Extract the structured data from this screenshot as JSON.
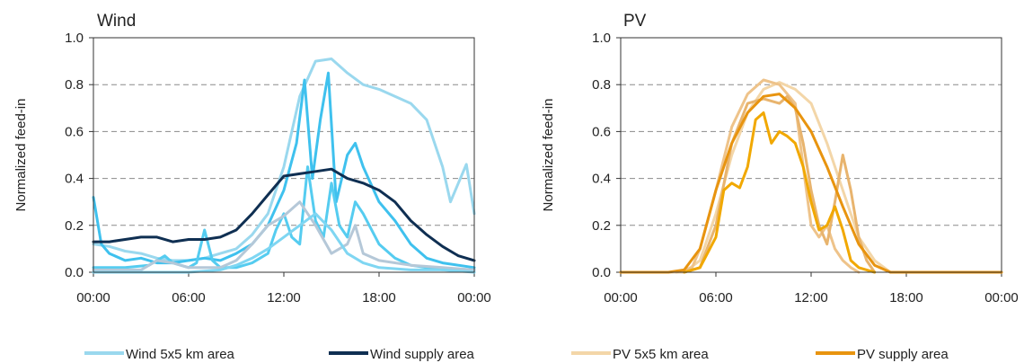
{
  "chart_data": [
    {
      "type": "line",
      "title": "Wind",
      "xlabel": "",
      "ylabel": "Normalized feed-in",
      "ylim": [
        0,
        1
      ],
      "y_ticks": [
        "0.0",
        "0.2",
        "0.4",
        "0.6",
        "0.8",
        "1.0"
      ],
      "x_ticks": [
        "00:00",
        "06:00",
        "12:00",
        "18:00",
        "00:00"
      ],
      "grid": "horizontal dashed",
      "series": [
        {
          "legend": "Wind 5x5 km area",
          "color": "#9ad8ee",
          "points": [
            [
              0,
              0.12
            ],
            [
              1,
              0.11
            ],
            [
              2,
              0.09
            ],
            [
              3,
              0.08
            ],
            [
              4,
              0.06
            ],
            [
              5,
              0.05
            ],
            [
              6,
              0.05
            ],
            [
              7,
              0.06
            ],
            [
              8,
              0.08
            ],
            [
              9,
              0.1
            ],
            [
              10,
              0.16
            ],
            [
              11,
              0.25
            ],
            [
              12,
              0.45
            ],
            [
              13,
              0.75
            ],
            [
              14,
              0.9
            ],
            [
              15,
              0.91
            ],
            [
              16,
              0.85
            ],
            [
              17,
              0.8
            ],
            [
              18,
              0.78
            ],
            [
              19,
              0.75
            ],
            [
              20,
              0.72
            ],
            [
              21,
              0.65
            ],
            [
              22,
              0.45
            ],
            [
              22.5,
              0.3
            ],
            [
              23,
              0.38
            ],
            [
              23.5,
              0.46
            ],
            [
              24,
              0.25
            ]
          ]
        },
        {
          "legend": "",
          "color": "#3fc1ee",
          "points": [
            [
              0,
              0.32
            ],
            [
              0.5,
              0.12
            ],
            [
              1,
              0.08
            ],
            [
              2,
              0.05
            ],
            [
              3,
              0.06
            ],
            [
              4,
              0.04
            ],
            [
              5,
              0.04
            ],
            [
              6,
              0.05
            ],
            [
              7,
              0.06
            ],
            [
              8,
              0.05
            ],
            [
              9,
              0.08
            ],
            [
              10,
              0.12
            ],
            [
              11,
              0.2
            ],
            [
              12,
              0.35
            ],
            [
              12.8,
              0.55
            ],
            [
              13.3,
              0.82
            ],
            [
              13.8,
              0.4
            ],
            [
              14.3,
              0.65
            ],
            [
              14.8,
              0.85
            ],
            [
              15.3,
              0.3
            ],
            [
              16,
              0.5
            ],
            [
              16.5,
              0.55
            ],
            [
              17,
              0.45
            ],
            [
              18,
              0.3
            ],
            [
              19,
              0.22
            ],
            [
              20,
              0.12
            ],
            [
              21,
              0.06
            ],
            [
              22,
              0.04
            ],
            [
              23,
              0.03
            ],
            [
              24,
              0.02
            ]
          ]
        },
        {
          "legend": "",
          "color": "#55ccf0",
          "points": [
            [
              0,
              0.02
            ],
            [
              2,
              0.02
            ],
            [
              3.5,
              0.03
            ],
            [
              4.5,
              0.07
            ],
            [
              5,
              0.04
            ],
            [
              6,
              0.02
            ],
            [
              6.5,
              0.04
            ],
            [
              7,
              0.18
            ],
            [
              7.5,
              0.05
            ],
            [
              8,
              0.02
            ],
            [
              9,
              0.02
            ],
            [
              10,
              0.04
            ],
            [
              11,
              0.08
            ],
            [
              11.5,
              0.18
            ],
            [
              12,
              0.25
            ],
            [
              12.5,
              0.15
            ],
            [
              13,
              0.12
            ],
            [
              13.5,
              0.45
            ],
            [
              14,
              0.22
            ],
            [
              14.5,
              0.15
            ],
            [
              15,
              0.38
            ],
            [
              15.5,
              0.2
            ],
            [
              16,
              0.15
            ],
            [
              16.5,
              0.3
            ],
            [
              17,
              0.25
            ],
            [
              18,
              0.12
            ],
            [
              19,
              0.06
            ],
            [
              20,
              0.03
            ],
            [
              21,
              0.02
            ],
            [
              22,
              0.01
            ],
            [
              24,
              0.01
            ]
          ]
        },
        {
          "legend": "",
          "color": "#b5c8d8",
          "points": [
            [
              0,
              0.01
            ],
            [
              3,
              0.01
            ],
            [
              4,
              0.05
            ],
            [
              5,
              0.04
            ],
            [
              6,
              0.02
            ],
            [
              8,
              0.02
            ],
            [
              9,
              0.05
            ],
            [
              10,
              0.12
            ],
            [
              11,
              0.2
            ],
            [
              12,
              0.24
            ],
            [
              13,
              0.3
            ],
            [
              14,
              0.2
            ],
            [
              15,
              0.08
            ],
            [
              16,
              0.12
            ],
            [
              16.5,
              0.2
            ],
            [
              17,
              0.08
            ],
            [
              18,
              0.05
            ],
            [
              20,
              0.03
            ],
            [
              22,
              0.02
            ],
            [
              24,
              0.01
            ]
          ]
        },
        {
          "legend": "",
          "color": "#7fd6f2",
          "points": [
            [
              0,
              0.0
            ],
            [
              6,
              0.0
            ],
            [
              8,
              0.01
            ],
            [
              9,
              0.03
            ],
            [
              10,
              0.06
            ],
            [
              11,
              0.1
            ],
            [
              12,
              0.15
            ],
            [
              13,
              0.2
            ],
            [
              14,
              0.25
            ],
            [
              15,
              0.18
            ],
            [
              16,
              0.08
            ],
            [
              17,
              0.04
            ],
            [
              18,
              0.02
            ],
            [
              20,
              0.01
            ],
            [
              22,
              0.01
            ],
            [
              24,
              0.0
            ]
          ]
        },
        {
          "legend": "Wind supply area",
          "color": "#0f2f52",
          "points": [
            [
              0,
              0.13
            ],
            [
              1,
              0.13
            ],
            [
              2,
              0.14
            ],
            [
              3,
              0.15
            ],
            [
              4,
              0.15
            ],
            [
              5,
              0.13
            ],
            [
              6,
              0.14
            ],
            [
              7,
              0.14
            ],
            [
              8,
              0.15
            ],
            [
              9,
              0.18
            ],
            [
              10,
              0.25
            ],
            [
              11,
              0.33
            ],
            [
              12,
              0.41
            ],
            [
              13,
              0.42
            ],
            [
              14,
              0.43
            ],
            [
              15,
              0.44
            ],
            [
              16,
              0.4
            ],
            [
              17,
              0.38
            ],
            [
              18,
              0.35
            ],
            [
              19,
              0.3
            ],
            [
              20,
              0.22
            ],
            [
              21,
              0.16
            ],
            [
              22,
              0.11
            ],
            [
              23,
              0.07
            ],
            [
              24,
              0.05
            ]
          ]
        }
      ]
    },
    {
      "type": "line",
      "title": "PV",
      "xlabel": "",
      "ylabel": "Normalized feed-in",
      "ylim": [
        0,
        1
      ],
      "y_ticks": [
        "0.0",
        "0.2",
        "0.4",
        "0.6",
        "0.8",
        "1.0"
      ],
      "x_ticks": [
        "00:00",
        "06:00",
        "12:00",
        "18:00",
        "00:00"
      ],
      "grid": "horizontal dashed",
      "series": [
        {
          "legend": "PV 5x5 km area",
          "color": "#f3d6a8",
          "points": [
            [
              0,
              0
            ],
            [
              4,
              0
            ],
            [
              5,
              0.05
            ],
            [
              6,
              0.25
            ],
            [
              7,
              0.5
            ],
            [
              8,
              0.68
            ],
            [
              9,
              0.78
            ],
            [
              10,
              0.81
            ],
            [
              11,
              0.78
            ],
            [
              12,
              0.72
            ],
            [
              13,
              0.55
            ],
            [
              14,
              0.35
            ],
            [
              15,
              0.15
            ],
            [
              16,
              0.05
            ],
            [
              17,
              0
            ]
          ]
        },
        {
          "legend": "",
          "color": "#eec38a",
          "points": [
            [
              3.5,
              0
            ],
            [
              4.5,
              0.02
            ],
            [
              5,
              0.1
            ],
            [
              6,
              0.35
            ],
            [
              7,
              0.62
            ],
            [
              8,
              0.76
            ],
            [
              9,
              0.82
            ],
            [
              10,
              0.8
            ],
            [
              11,
              0.72
            ],
            [
              11.6,
              0.4
            ],
            [
              12,
              0.2
            ],
            [
              12.5,
              0.15
            ],
            [
              13,
              0.2
            ],
            [
              13.5,
              0.1
            ],
            [
              14,
              0.05
            ],
            [
              14.5,
              0.02
            ],
            [
              15,
              0
            ]
          ]
        },
        {
          "legend": "",
          "color": "#e8b46e",
          "points": [
            [
              4,
              0
            ],
            [
              5,
              0.02
            ],
            [
              6,
              0.2
            ],
            [
              7,
              0.55
            ],
            [
              8,
              0.72
            ],
            [
              9,
              0.74
            ],
            [
              10,
              0.72
            ],
            [
              10.5,
              0.75
            ],
            [
              11,
              0.7
            ],
            [
              11.5,
              0.55
            ],
            [
              12,
              0.35
            ],
            [
              12.5,
              0.2
            ],
            [
              13,
              0.12
            ],
            [
              13.5,
              0.3
            ],
            [
              14,
              0.5
            ],
            [
              14.5,
              0.35
            ],
            [
              15,
              0.15
            ],
            [
              15.5,
              0.05
            ],
            [
              16,
              0
            ]
          ]
        },
        {
          "legend": "",
          "color": "#f1a800",
          "points": [
            [
              4,
              0
            ],
            [
              5,
              0.02
            ],
            [
              6,
              0.15
            ],
            [
              6.5,
              0.35
            ],
            [
              7,
              0.38
            ],
            [
              7.5,
              0.36
            ],
            [
              8,
              0.45
            ],
            [
              8.5,
              0.65
            ],
            [
              9,
              0.68
            ],
            [
              9.5,
              0.55
            ],
            [
              10,
              0.6
            ],
            [
              10.5,
              0.58
            ],
            [
              11,
              0.55
            ],
            [
              11.5,
              0.45
            ],
            [
              12,
              0.3
            ],
            [
              12.5,
              0.18
            ],
            [
              13,
              0.2
            ],
            [
              13.5,
              0.28
            ],
            [
              14,
              0.18
            ],
            [
              14.5,
              0.05
            ],
            [
              15,
              0.02
            ],
            [
              15.5,
              0.01
            ],
            [
              16,
              0
            ]
          ]
        },
        {
          "legend": "PV supply area",
          "color": "#e8940f",
          "points": [
            [
              0,
              0
            ],
            [
              3,
              0
            ],
            [
              4,
              0.01
            ],
            [
              5,
              0.1
            ],
            [
              6,
              0.35
            ],
            [
              7,
              0.55
            ],
            [
              8,
              0.68
            ],
            [
              9,
              0.75
            ],
            [
              10,
              0.76
            ],
            [
              11,
              0.7
            ],
            [
              12,
              0.6
            ],
            [
              13,
              0.45
            ],
            [
              14,
              0.28
            ],
            [
              15,
              0.12
            ],
            [
              16,
              0.03
            ],
            [
              17,
              0
            ],
            [
              18,
              0
            ],
            [
              24,
              0
            ]
          ]
        }
      ]
    }
  ]
}
